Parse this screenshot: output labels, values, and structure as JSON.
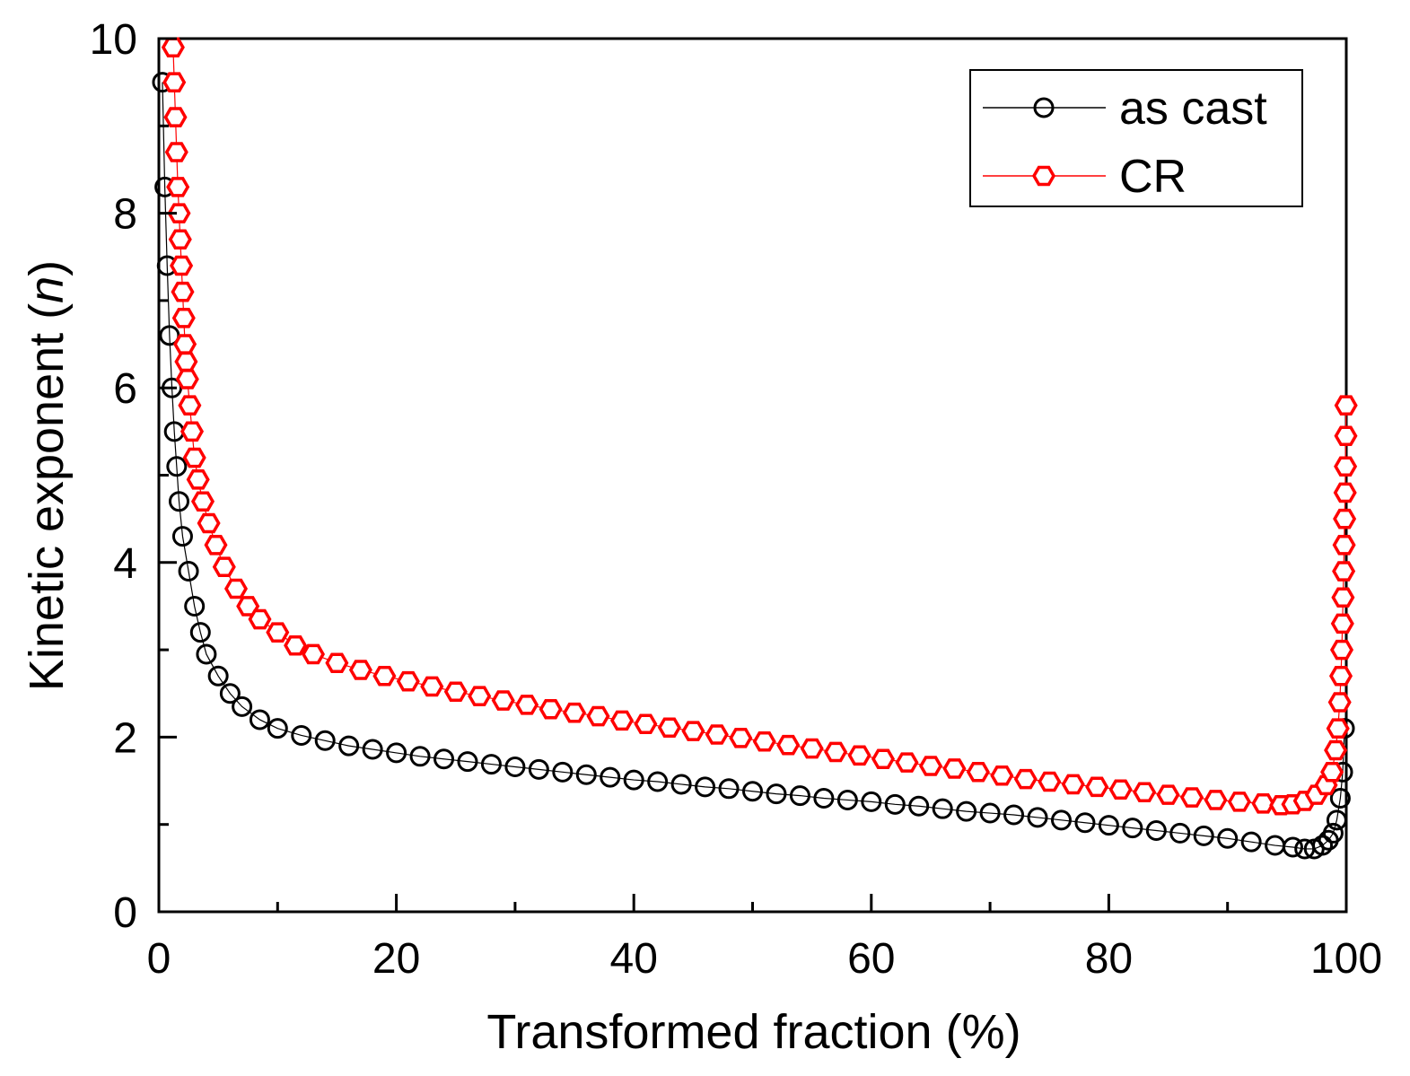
{
  "chart_data": {
    "type": "scatter",
    "title": "",
    "xlabel": "Transformed fraction (%)",
    "ylabel_main": "Kinetic exponent (",
    "ylabel_var": "n",
    "ylabel_close": ")",
    "xlim": [
      0,
      100
    ],
    "ylim": [
      0,
      10
    ],
    "xticks": [
      "0",
      "20",
      "40",
      "60",
      "80",
      "100"
    ],
    "yticks": [
      "0",
      "2",
      "4",
      "6",
      "8",
      "10"
    ],
    "legend_position": "top-right",
    "series": [
      {
        "name": "as cast",
        "color": "#000000",
        "marker": "circle-open",
        "x": [
          0.3,
          0.5,
          0.7,
          0.9,
          1.1,
          1.3,
          1.5,
          1.7,
          2.0,
          2.5,
          3.0,
          3.5,
          4.0,
          5.0,
          6.0,
          7.0,
          8.5,
          10,
          12,
          14,
          16,
          18,
          20,
          22,
          24,
          26,
          28,
          30,
          32,
          34,
          36,
          38,
          40,
          42,
          44,
          46,
          48,
          50,
          52,
          54,
          56,
          58,
          60,
          62,
          64,
          66,
          68,
          70,
          72,
          74,
          76,
          78,
          80,
          82,
          84,
          86,
          88,
          90,
          92,
          94,
          95.5,
          96.5,
          97.3,
          98.0,
          98.5,
          98.9,
          99.2,
          99.5,
          99.7,
          99.85
        ],
        "y": [
          9.5,
          8.3,
          7.4,
          6.6,
          6.0,
          5.5,
          5.1,
          4.7,
          4.3,
          3.9,
          3.5,
          3.2,
          2.95,
          2.7,
          2.5,
          2.35,
          2.2,
          2.1,
          2.02,
          1.96,
          1.9,
          1.86,
          1.82,
          1.78,
          1.75,
          1.72,
          1.69,
          1.66,
          1.63,
          1.6,
          1.57,
          1.54,
          1.51,
          1.49,
          1.46,
          1.43,
          1.41,
          1.38,
          1.35,
          1.33,
          1.3,
          1.28,
          1.26,
          1.23,
          1.21,
          1.18,
          1.15,
          1.13,
          1.11,
          1.08,
          1.05,
          1.02,
          0.99,
          0.96,
          0.93,
          0.9,
          0.87,
          0.84,
          0.8,
          0.76,
          0.74,
          0.72,
          0.72,
          0.76,
          0.82,
          0.9,
          1.05,
          1.3,
          1.6,
          2.1
        ]
      },
      {
        "name": "CR",
        "color": "#ff0000",
        "marker": "hexagon-open",
        "x": [
          1.2,
          1.3,
          1.4,
          1.5,
          1.6,
          1.7,
          1.8,
          1.9,
          2.0,
          2.1,
          2.2,
          2.3,
          2.4,
          2.6,
          2.8,
          3.0,
          3.3,
          3.7,
          4.2,
          4.8,
          5.5,
          6.5,
          7.5,
          8.5,
          10,
          11.5,
          13,
          15,
          17,
          19,
          21,
          23,
          25,
          27,
          29,
          31,
          33,
          35,
          37,
          39,
          41,
          43,
          45,
          47,
          49,
          51,
          53,
          55,
          57,
          59,
          61,
          63,
          65,
          67,
          69,
          71,
          73,
          75,
          77,
          79,
          81,
          83,
          85,
          87,
          89,
          91,
          93,
          94.5,
          95.5,
          96.5,
          97.5,
          98.3,
          98.8,
          99.1,
          99.3,
          99.45,
          99.55,
          99.62,
          99.68,
          99.73,
          99.78,
          99.82,
          99.86,
          99.9,
          99.93,
          99.96,
          99.98
        ],
        "y": [
          9.9,
          9.5,
          9.1,
          8.7,
          8.3,
          8.0,
          7.7,
          7.4,
          7.1,
          6.8,
          6.5,
          6.3,
          6.1,
          5.8,
          5.5,
          5.2,
          4.95,
          4.7,
          4.45,
          4.2,
          3.95,
          3.7,
          3.5,
          3.35,
          3.2,
          3.05,
          2.95,
          2.85,
          2.77,
          2.7,
          2.64,
          2.58,
          2.52,
          2.47,
          2.42,
          2.37,
          2.32,
          2.28,
          2.24,
          2.19,
          2.15,
          2.11,
          2.07,
          2.03,
          1.99,
          1.95,
          1.91,
          1.87,
          1.83,
          1.79,
          1.75,
          1.71,
          1.67,
          1.64,
          1.6,
          1.56,
          1.52,
          1.49,
          1.46,
          1.43,
          1.4,
          1.37,
          1.34,
          1.31,
          1.28,
          1.26,
          1.24,
          1.22,
          1.23,
          1.27,
          1.34,
          1.45,
          1.6,
          1.85,
          2.1,
          2.4,
          2.7,
          3.0,
          3.3,
          3.6,
          3.9,
          4.2,
          4.5,
          4.8,
          5.1,
          5.45,
          5.8
        ]
      }
    ]
  }
}
